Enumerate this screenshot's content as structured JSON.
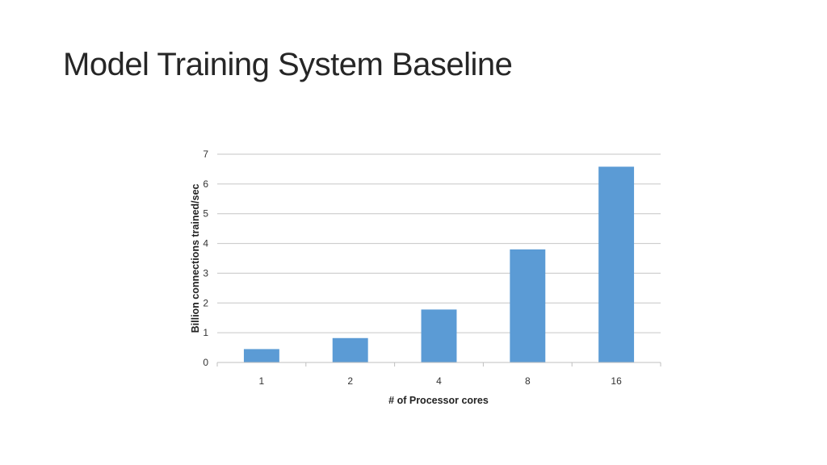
{
  "slide": {
    "title": "Model Training System Baseline"
  },
  "chart_data": {
    "type": "bar",
    "categories": [
      "1",
      "2",
      "4",
      "8",
      "16"
    ],
    "values": [
      0.45,
      0.82,
      1.78,
      3.8,
      6.58
    ],
    "xlabel": "# of Processor cores",
    "ylabel": "Billion connections trained/sec",
    "ylim": [
      0,
      7
    ],
    "yticks": [
      "0",
      "1",
      "2",
      "3",
      "4",
      "5",
      "6",
      "7"
    ],
    "grid": true,
    "legend": "none",
    "bar_color": "#5B9BD5",
    "grid_color": "#C6C6C6"
  }
}
